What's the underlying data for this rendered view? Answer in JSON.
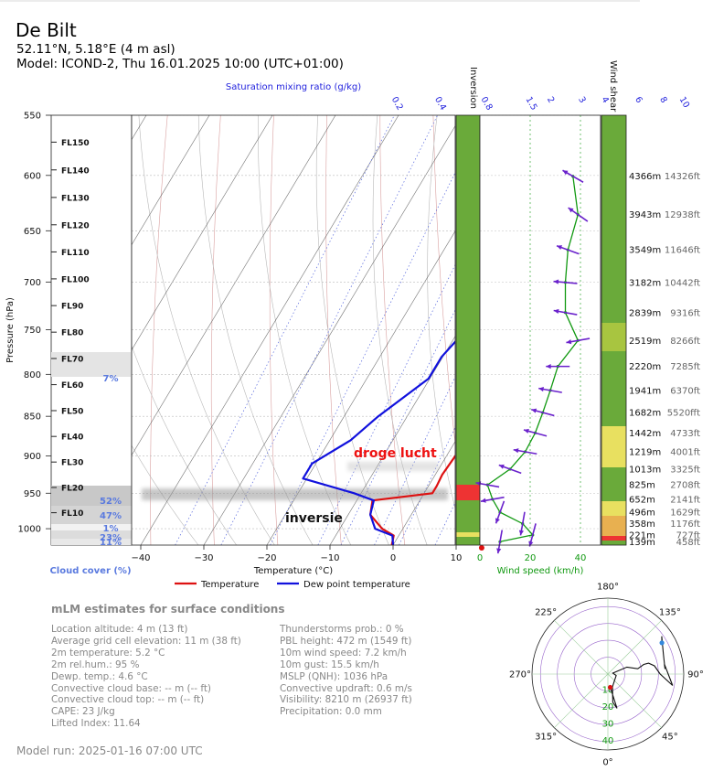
{
  "header": {
    "title": "De Bilt",
    "location": "52.11°N, 5.18°E (4 m asl)",
    "model": "Model: ICOND-2, Thu 16.01.2025 10:00 (UTC+01:00)"
  },
  "colors": {
    "temperature": "#dd1111",
    "dewpoint": "#1111dd",
    "wind": "#119911",
    "barb": "#6a22cc",
    "inversion_green": "#6aaa3a",
    "inversion_red": "#ee3333",
    "cloud_label": "#5a7adf",
    "shear_green": "#6aaa3a",
    "shear_light": "#a8c540",
    "shear_yellow": "#e8e060",
    "shear_orange": "#e8b050"
  },
  "chart_data": [
    {
      "type": "line",
      "name": "skew-t",
      "ylabel": "Pressure (hPa)",
      "xlabel": "Temperature (°C)",
      "y_scale": "log",
      "ylim": [
        1024,
        550
      ],
      "xlim": [
        -42,
        10
      ],
      "pressure_ticks": [
        550,
        600,
        650,
        700,
        750,
        800,
        850,
        900,
        950,
        1000
      ],
      "temperature_ticks": [
        -40,
        -30,
        -20,
        -10,
        0,
        10
      ],
      "mixing_ratio_title": "Saturation mixing ratio (g/kg)",
      "mixing_ratio_ticks": [
        "0.2",
        "0.4",
        "0.8",
        "1.5",
        "2",
        "3",
        "4",
        "6",
        "8",
        "10"
      ],
      "series": [
        {
          "name": "Temperature",
          "points": [
            [
              550,
              3.5
            ],
            [
              575,
              6.5
            ],
            [
              600,
              6.5
            ],
            [
              650,
              6.5
            ],
            [
              690,
              5.6
            ],
            [
              710,
              6.0
            ],
            [
              750,
              3.2
            ],
            [
              800,
              1.8
            ],
            [
              850,
              1.4
            ],
            [
              900,
              1.4
            ],
            [
              925,
              1.1
            ],
            [
              940,
              1.3
            ],
            [
              950,
              1.3
            ],
            [
              960,
              -7.5
            ],
            [
              980,
              -6.5
            ],
            [
              1000,
              -3.3
            ],
            [
              1010,
              -0.8
            ],
            [
              1024,
              -0.2
            ]
          ]
        },
        {
          "name": "Dew point temperature",
          "points": [
            [
              550,
              -3.2
            ],
            [
              575,
              -3.4
            ],
            [
              600,
              -4.0
            ],
            [
              640,
              -4.4
            ],
            [
              650,
              -6.2
            ],
            [
              700,
              -7.6
            ],
            [
              710,
              -8.3
            ],
            [
              750,
              -8.9
            ],
            [
              780,
              -10.2
            ],
            [
              805,
              -10.2
            ],
            [
              850,
              -14.6
            ],
            [
              880,
              -16.7
            ],
            [
              910,
              -20.6
            ],
            [
              930,
              -20.6
            ],
            [
              950,
              -11.1
            ],
            [
              960,
              -7.3
            ],
            [
              980,
              -6.5
            ],
            [
              1000,
              -4.4
            ],
            [
              1010,
              -1.0
            ],
            [
              1024,
              0.0
            ]
          ]
        }
      ],
      "flight_levels": [
        "FL150",
        "FL140",
        "FL130",
        "FL120",
        "FL110",
        "FL100",
        "FL90",
        "FL80",
        "FL70",
        "FL60",
        "FL50",
        "FL40",
        "FL30",
        "FL20",
        "FL10"
      ],
      "annotations": [
        "droge lucht",
        "inversie"
      ]
    },
    {
      "type": "bar",
      "name": "cloud-cover",
      "title": "Cloud cover (%)",
      "labels": [
        "7%",
        "52%",
        "47%",
        "1%",
        "23%",
        "11%"
      ]
    },
    {
      "type": "line",
      "name": "wind-speed",
      "xlabel": "Wind speed (km/h)",
      "xlim": [
        0,
        48
      ],
      "ticks": [
        0,
        20,
        40
      ],
      "levels": [
        {
          "alt_m": "4366m",
          "alt_ft": "14326ft",
          "speed": 37,
          "dir": 120
        },
        {
          "alt_m": "3943m",
          "alt_ft": "12938ft",
          "speed": 39,
          "dir": 125
        },
        {
          "alt_m": "3549m",
          "alt_ft": "11646ft",
          "speed": 35,
          "dir": 110
        },
        {
          "alt_m": "3182m",
          "alt_ft": "10442ft",
          "speed": 34,
          "dir": 95
        },
        {
          "alt_m": "2839m",
          "alt_ft": "9316ft",
          "speed": 34,
          "dir": 100
        },
        {
          "alt_m": "2519m",
          "alt_ft": "8266ft",
          "speed": 39,
          "dir": 80
        },
        {
          "alt_m": "2220m",
          "alt_ft": "7285ft",
          "speed": 31,
          "dir": 90
        },
        {
          "alt_m": "1941m",
          "alt_ft": "6370ft",
          "speed": 28,
          "dir": 100
        },
        {
          "alt_m": "1682m",
          "alt_ft": "5520fft",
          "speed": 25,
          "dir": 105
        },
        {
          "alt_m": "1442m",
          "alt_ft": "4733ft",
          "speed": 22,
          "dir": 105
        },
        {
          "alt_m": "1219m",
          "alt_ft": "4001ft",
          "speed": 18,
          "dir": 100
        },
        {
          "alt_m": "1013m",
          "alt_ft": "3325ft",
          "speed": 12,
          "dir": 110
        },
        {
          "alt_m": "825m",
          "alt_ft": "2708ft",
          "speed": 3,
          "dir": 100
        },
        {
          "alt_m": "652m",
          "alt_ft": "2141ft",
          "speed": 5,
          "dir": 80
        },
        {
          "alt_m": "496m",
          "alt_ft": "1629ft",
          "speed": 8,
          "dir": 20
        },
        {
          "alt_m": "358m",
          "alt_ft": "1176ft",
          "speed": 17,
          "dir": 10
        },
        {
          "alt_m": "221m",
          "alt_ft": "727ft",
          "speed": 21,
          "dir": 15
        },
        {
          "alt_m": "139m",
          "alt_ft": "458ft",
          "speed": 8,
          "dir": 10
        }
      ]
    },
    {
      "type": "scatter",
      "name": "hodograph",
      "direction_labels": [
        "180°",
        "225°",
        "270°",
        "315°",
        "0°",
        "45°",
        "90°",
        "135°"
      ],
      "ring_labels": [
        "10",
        "20",
        "30",
        "40"
      ]
    }
  ],
  "labels": {
    "inversion": "Inversion",
    "wind_shear": "Wind shear"
  },
  "legend": {
    "temperature": "Temperature",
    "dewpoint": "Dew point temperature"
  },
  "surface": {
    "title": "mLM estimates for surface conditions",
    "left": [
      "Location altitude: 4 m (13 ft)",
      "Average grid cell elevation: 11 m (38 ft)",
      "2m temperature: 5.2 °C",
      "2m rel.hum.: 95 %",
      "Dewp. temp.: 4.6 °C",
      "Convective cloud base: -- m (-- ft)",
      "Convective cloud top: -- m (-- ft)",
      "CAPE: 23 J/kg",
      "Lifted Index: 11.64"
    ],
    "right": [
      "Thunderstorms prob.: 0 %",
      "PBL height: 472 m (1549 ft)",
      "10m wind speed: 7.2 km/h",
      "10m gust: 15.5 km/h",
      "MSLP (QNH): 1036 hPa",
      "Convective updraft: 0.6 m/s",
      "Visibility: 8210 m (26937 ft)",
      "Precipitation: 0.0 mm"
    ]
  },
  "footer": {
    "model_run": "Model run: 2025-01-16 07:00 UTC"
  }
}
